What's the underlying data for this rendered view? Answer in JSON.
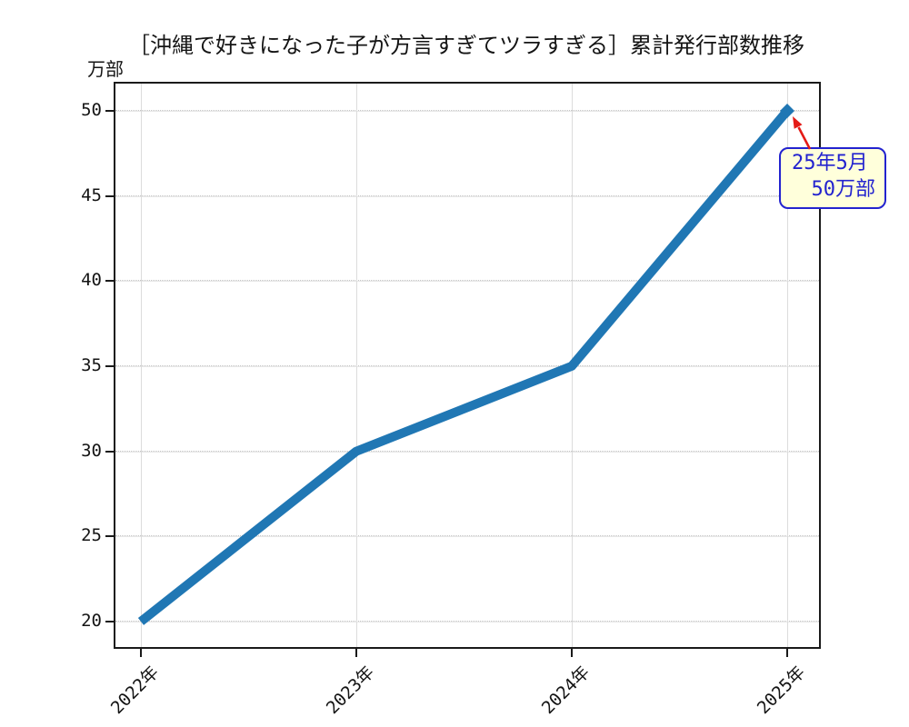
{
  "chart_data": {
    "type": "line",
    "title": "［沖縄で好きになった子が方言すぎてツラすぎる］累計発行部数推移",
    "ylabel": "万部",
    "xlabel": "",
    "categories": [
      "2022年",
      "2023年",
      "2024年",
      "2025年"
    ],
    "values": [
      20,
      30,
      35,
      50
    ],
    "yticks": [
      20,
      25,
      30,
      35,
      40,
      45,
      50
    ],
    "ylim": [
      18.5,
      51.6
    ],
    "grid": true,
    "legend": "none",
    "line_width": 10,
    "marker": "diamond-on-last-point",
    "annotation": {
      "text_line1": "25年5月",
      "text_line2": "50万部",
      "target_category": "2025年",
      "target_value": 50,
      "arrow": "red-arrow-to-point"
    }
  },
  "colors": {
    "line": "#2077b4",
    "frame": "#1a1a1a",
    "grid": "#dcdcdc",
    "annotation_border": "#2323cf",
    "annotation_text": "#2323cf",
    "annotation_bg": "#ffffdb",
    "arrow": "#e41b17"
  }
}
